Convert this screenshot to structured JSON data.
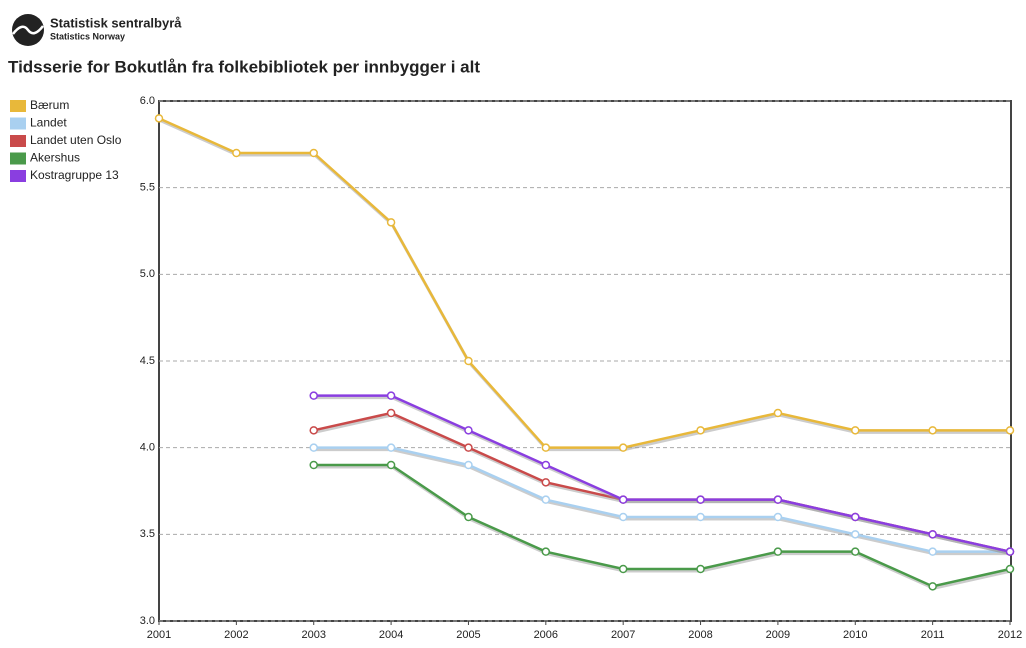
{
  "header": {
    "logo_name": "Statistisk sentralbyrå",
    "logo_subname": "Statistics Norway"
  },
  "chart_data": {
    "type": "line",
    "title": "Tidsserie for Bokutlån fra folkebibliotek per innbygger i alt",
    "x": [
      2001,
      2002,
      2003,
      2004,
      2005,
      2006,
      2007,
      2008,
      2009,
      2010,
      2011,
      2012
    ],
    "xlim": [
      2001,
      2012
    ],
    "xticks": [
      2001,
      2002,
      2003,
      2004,
      2005,
      2006,
      2007,
      2008,
      2009,
      2010,
      2011,
      2012
    ],
    "ylim": [
      3,
      6
    ],
    "yticks": [
      {
        "value": 3,
        "label": "3.0"
      },
      3.5,
      {
        "value": 4,
        "label": "4.0"
      },
      4.5,
      {
        "value": 5,
        "label": "5.0"
      },
      5.5,
      {
        "value": 6,
        "label": "6.0"
      }
    ],
    "grid": true,
    "legend": "top-left",
    "series": [
      {
        "name": "Bærum",
        "color": "#e8b83a",
        "values": [
          5.9,
          5.7,
          5.7,
          5.3,
          4.5,
          4.0,
          4.0,
          4.1,
          4.2,
          4.1,
          4.1,
          4.1
        ]
      },
      {
        "name": "Landet",
        "color": "#a9d0f0",
        "values": [
          null,
          null,
          4.0,
          4.0,
          3.9,
          3.7,
          3.6,
          3.6,
          3.6,
          3.5,
          3.4,
          3.4
        ]
      },
      {
        "name": "Landet uten Oslo",
        "color": "#c94a4a",
        "values": [
          null,
          null,
          4.1,
          4.2,
          4.0,
          3.8,
          3.7,
          3.7,
          3.7,
          3.6,
          3.5,
          3.4
        ]
      },
      {
        "name": "Akershus",
        "color": "#4a9a4a",
        "values": [
          null,
          null,
          3.9,
          3.9,
          3.6,
          3.4,
          3.3,
          3.3,
          3.4,
          3.4,
          3.2,
          3.3
        ]
      },
      {
        "name": "Kostragruppe 13",
        "color": "#8a3ee0",
        "values": [
          null,
          null,
          4.3,
          4.3,
          4.1,
          3.9,
          3.7,
          3.7,
          3.7,
          3.6,
          3.5,
          3.4
        ]
      }
    ]
  }
}
